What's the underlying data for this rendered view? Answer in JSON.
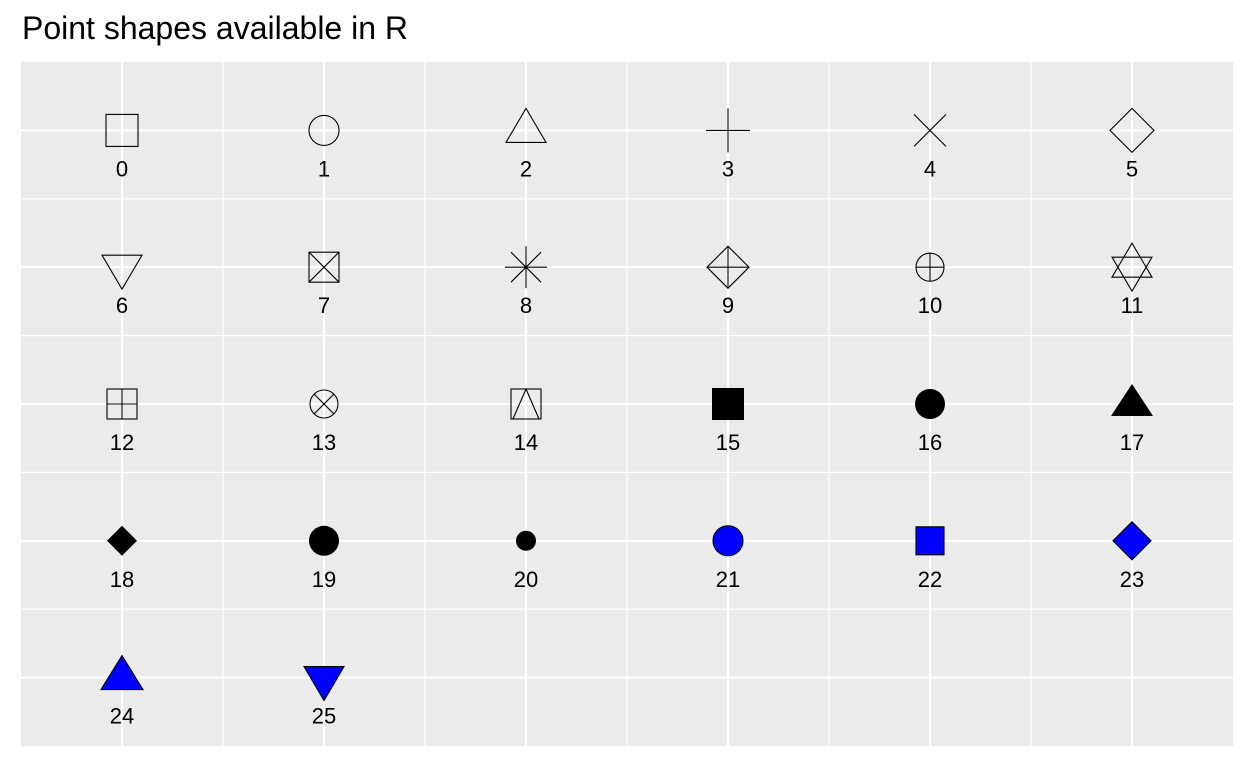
{
  "chart_data": {
    "type": "scatter",
    "title": "Point shapes available in R",
    "xlim": [
      0.5,
      6.5
    ],
    "ylim": [
      0.5,
      5.5
    ],
    "grid": true,
    "accent_fill": "#0000ff",
    "panel_background": "#ebebeb",
    "points": [
      {
        "label": "0",
        "x": 1,
        "y": 5,
        "shape": "square-open",
        "fill": "none"
      },
      {
        "label": "1",
        "x": 2,
        "y": 5,
        "shape": "circle-open",
        "fill": "none"
      },
      {
        "label": "2",
        "x": 3,
        "y": 5,
        "shape": "triangle-up-open",
        "fill": "none"
      },
      {
        "label": "3",
        "x": 4,
        "y": 5,
        "shape": "plus",
        "fill": "none"
      },
      {
        "label": "4",
        "x": 5,
        "y": 5,
        "shape": "cross",
        "fill": "none"
      },
      {
        "label": "5",
        "x": 6,
        "y": 5,
        "shape": "diamond-open",
        "fill": "none"
      },
      {
        "label": "6",
        "x": 1,
        "y": 4,
        "shape": "triangle-down-open",
        "fill": "none"
      },
      {
        "label": "7",
        "x": 2,
        "y": 4,
        "shape": "square-cross",
        "fill": "none"
      },
      {
        "label": "8",
        "x": 3,
        "y": 4,
        "shape": "asterisk",
        "fill": "none"
      },
      {
        "label": "9",
        "x": 4,
        "y": 4,
        "shape": "diamond-plus",
        "fill": "none"
      },
      {
        "label": "10",
        "x": 5,
        "y": 4,
        "shape": "circle-plus",
        "fill": "none"
      },
      {
        "label": "11",
        "x": 6,
        "y": 4,
        "shape": "star-of-david",
        "fill": "none"
      },
      {
        "label": "12",
        "x": 1,
        "y": 3,
        "shape": "square-plus",
        "fill": "none"
      },
      {
        "label": "13",
        "x": 2,
        "y": 3,
        "shape": "circle-cross",
        "fill": "none"
      },
      {
        "label": "14",
        "x": 3,
        "y": 3,
        "shape": "square-triangle",
        "fill": "none"
      },
      {
        "label": "15",
        "x": 4,
        "y": 3,
        "shape": "square-filled",
        "fill": "#000000"
      },
      {
        "label": "16",
        "x": 5,
        "y": 3,
        "shape": "circle-filled",
        "fill": "#000000"
      },
      {
        "label": "17",
        "x": 6,
        "y": 3,
        "shape": "triangle-up-filled",
        "fill": "#000000"
      },
      {
        "label": "18",
        "x": 1,
        "y": 2,
        "shape": "diamond-filled-small",
        "fill": "#000000"
      },
      {
        "label": "19",
        "x": 2,
        "y": 2,
        "shape": "circle-filled-large",
        "fill": "#000000"
      },
      {
        "label": "20",
        "x": 3,
        "y": 2,
        "shape": "circle-filled-small",
        "fill": "#000000"
      },
      {
        "label": "21",
        "x": 4,
        "y": 2,
        "shape": "circle-fill",
        "fill": "#0000ff"
      },
      {
        "label": "22",
        "x": 5,
        "y": 2,
        "shape": "square-fill",
        "fill": "#0000ff"
      },
      {
        "label": "23",
        "x": 6,
        "y": 2,
        "shape": "diamond-fill",
        "fill": "#0000ff"
      },
      {
        "label": "24",
        "x": 1,
        "y": 1,
        "shape": "triangle-up-fill",
        "fill": "#0000ff"
      },
      {
        "label": "25",
        "x": 2,
        "y": 1,
        "shape": "triangle-down-fill",
        "fill": "#0000ff"
      }
    ]
  }
}
